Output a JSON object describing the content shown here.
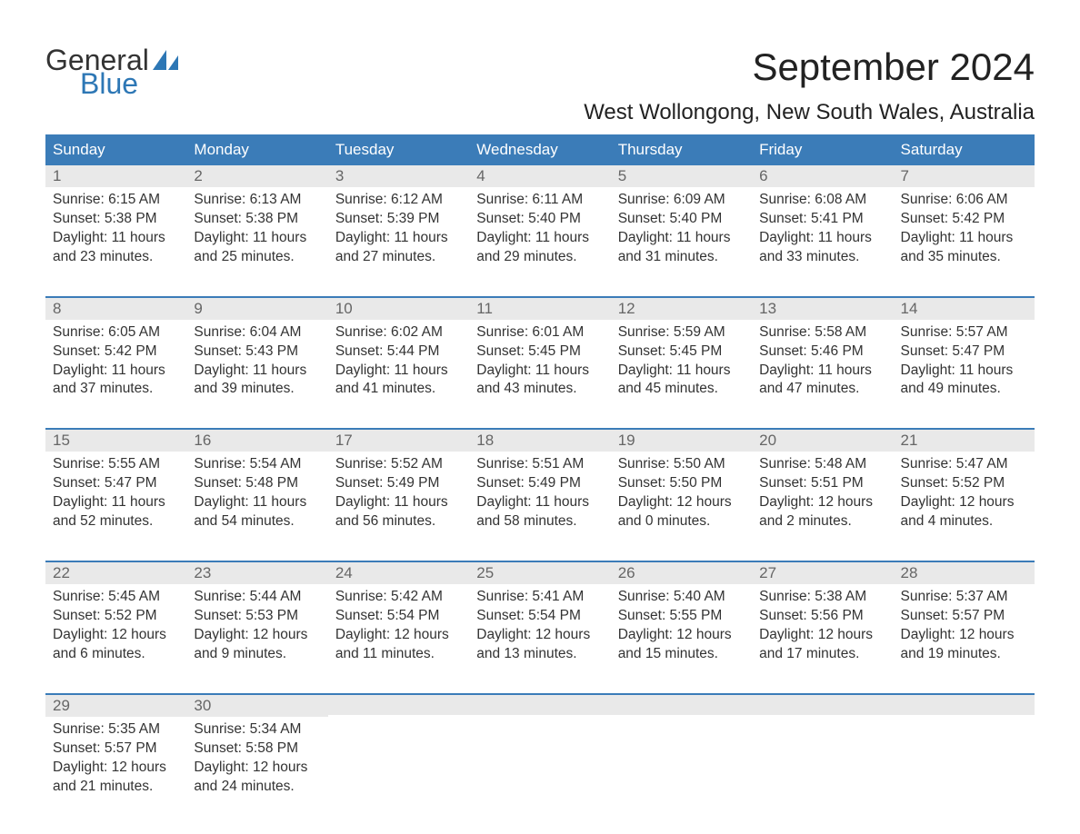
{
  "logo": {
    "text_line1": "General",
    "text_line2": "Blue",
    "color_general": "#333333",
    "color_blue": "#2d77b5",
    "sail_color": "#2d77b5"
  },
  "title": "September 2024",
  "location": "West Wollongong, New South Wales, Australia",
  "colors": {
    "header_bg": "#3b7cb8",
    "header_text": "#ffffff",
    "week_border": "#3b7cb8",
    "daynum_bg": "#e9e9e9",
    "daynum_text": "#666666",
    "body_text": "#333333",
    "background": "#ffffff"
  },
  "typography": {
    "title_fontsize": 42,
    "location_fontsize": 24,
    "header_fontsize": 17,
    "daynum_fontsize": 17,
    "detail_fontsize": 15.5
  },
  "day_headers": [
    "Sunday",
    "Monday",
    "Tuesday",
    "Wednesday",
    "Thursday",
    "Friday",
    "Saturday"
  ],
  "labels": {
    "sunrise": "Sunrise:",
    "sunset": "Sunset:",
    "daylight": "Daylight:"
  },
  "weeks": [
    [
      {
        "day": "1",
        "sunrise": "6:15 AM",
        "sunset": "5:38 PM",
        "daylight": "11 hours and 23 minutes."
      },
      {
        "day": "2",
        "sunrise": "6:13 AM",
        "sunset": "5:38 PM",
        "daylight": "11 hours and 25 minutes."
      },
      {
        "day": "3",
        "sunrise": "6:12 AM",
        "sunset": "5:39 PM",
        "daylight": "11 hours and 27 minutes."
      },
      {
        "day": "4",
        "sunrise": "6:11 AM",
        "sunset": "5:40 PM",
        "daylight": "11 hours and 29 minutes."
      },
      {
        "day": "5",
        "sunrise": "6:09 AM",
        "sunset": "5:40 PM",
        "daylight": "11 hours and 31 minutes."
      },
      {
        "day": "6",
        "sunrise": "6:08 AM",
        "sunset": "5:41 PM",
        "daylight": "11 hours and 33 minutes."
      },
      {
        "day": "7",
        "sunrise": "6:06 AM",
        "sunset": "5:42 PM",
        "daylight": "11 hours and 35 minutes."
      }
    ],
    [
      {
        "day": "8",
        "sunrise": "6:05 AM",
        "sunset": "5:42 PM",
        "daylight": "11 hours and 37 minutes."
      },
      {
        "day": "9",
        "sunrise": "6:04 AM",
        "sunset": "5:43 PM",
        "daylight": "11 hours and 39 minutes."
      },
      {
        "day": "10",
        "sunrise": "6:02 AM",
        "sunset": "5:44 PM",
        "daylight": "11 hours and 41 minutes."
      },
      {
        "day": "11",
        "sunrise": "6:01 AM",
        "sunset": "5:45 PM",
        "daylight": "11 hours and 43 minutes."
      },
      {
        "day": "12",
        "sunrise": "5:59 AM",
        "sunset": "5:45 PM",
        "daylight": "11 hours and 45 minutes."
      },
      {
        "day": "13",
        "sunrise": "5:58 AM",
        "sunset": "5:46 PM",
        "daylight": "11 hours and 47 minutes."
      },
      {
        "day": "14",
        "sunrise": "5:57 AM",
        "sunset": "5:47 PM",
        "daylight": "11 hours and 49 minutes."
      }
    ],
    [
      {
        "day": "15",
        "sunrise": "5:55 AM",
        "sunset": "5:47 PM",
        "daylight": "11 hours and 52 minutes."
      },
      {
        "day": "16",
        "sunrise": "5:54 AM",
        "sunset": "5:48 PM",
        "daylight": "11 hours and 54 minutes."
      },
      {
        "day": "17",
        "sunrise": "5:52 AM",
        "sunset": "5:49 PM",
        "daylight": "11 hours and 56 minutes."
      },
      {
        "day": "18",
        "sunrise": "5:51 AM",
        "sunset": "5:49 PM",
        "daylight": "11 hours and 58 minutes."
      },
      {
        "day": "19",
        "sunrise": "5:50 AM",
        "sunset": "5:50 PM",
        "daylight": "12 hours and 0 minutes."
      },
      {
        "day": "20",
        "sunrise": "5:48 AM",
        "sunset": "5:51 PM",
        "daylight": "12 hours and 2 minutes."
      },
      {
        "day": "21",
        "sunrise": "5:47 AM",
        "sunset": "5:52 PM",
        "daylight": "12 hours and 4 minutes."
      }
    ],
    [
      {
        "day": "22",
        "sunrise": "5:45 AM",
        "sunset": "5:52 PM",
        "daylight": "12 hours and 6 minutes."
      },
      {
        "day": "23",
        "sunrise": "5:44 AM",
        "sunset": "5:53 PM",
        "daylight": "12 hours and 9 minutes."
      },
      {
        "day": "24",
        "sunrise": "5:42 AM",
        "sunset": "5:54 PM",
        "daylight": "12 hours and 11 minutes."
      },
      {
        "day": "25",
        "sunrise": "5:41 AM",
        "sunset": "5:54 PM",
        "daylight": "12 hours and 13 minutes."
      },
      {
        "day": "26",
        "sunrise": "5:40 AM",
        "sunset": "5:55 PM",
        "daylight": "12 hours and 15 minutes."
      },
      {
        "day": "27",
        "sunrise": "5:38 AM",
        "sunset": "5:56 PM",
        "daylight": "12 hours and 17 minutes."
      },
      {
        "day": "28",
        "sunrise": "5:37 AM",
        "sunset": "5:57 PM",
        "daylight": "12 hours and 19 minutes."
      }
    ],
    [
      {
        "day": "29",
        "sunrise": "5:35 AM",
        "sunset": "5:57 PM",
        "daylight": "12 hours and 21 minutes."
      },
      {
        "day": "30",
        "sunrise": "5:34 AM",
        "sunset": "5:58 PM",
        "daylight": "12 hours and 24 minutes."
      },
      {
        "empty": true
      },
      {
        "empty": true
      },
      {
        "empty": true
      },
      {
        "empty": true
      },
      {
        "empty": true
      }
    ]
  ]
}
